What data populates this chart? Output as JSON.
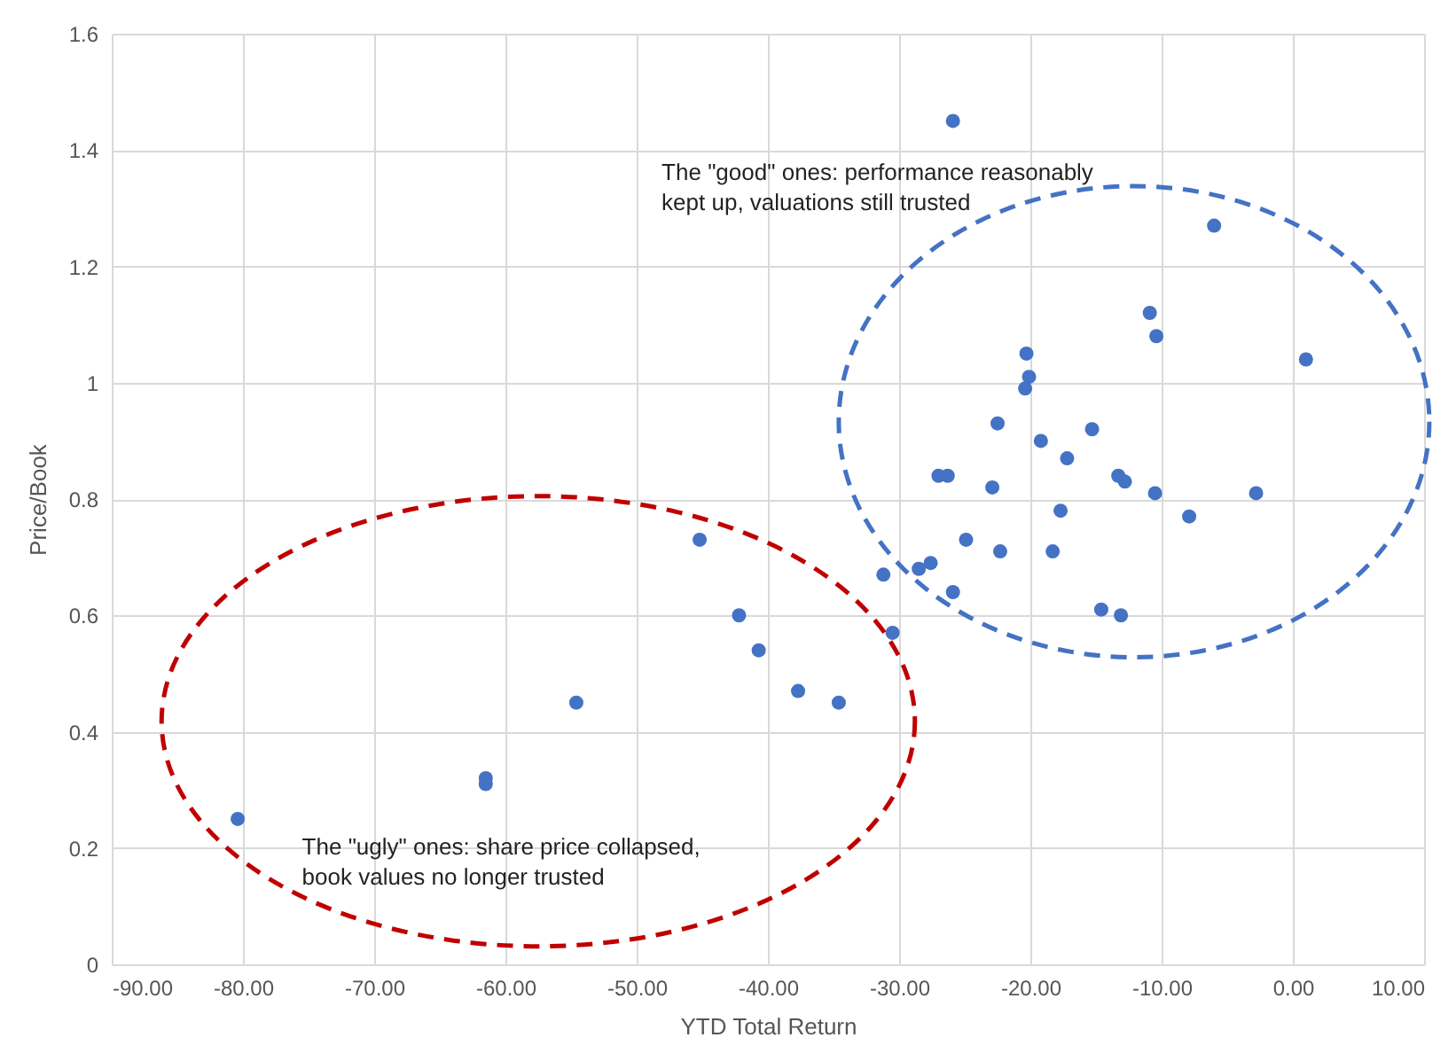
{
  "chart_data": {
    "type": "scatter",
    "xlabel": "YTD Total Return",
    "ylabel": "Price/Book",
    "x": [
      -25.9,
      -6.0,
      -10.9,
      -10.4,
      1.0,
      -20.3,
      -20.1,
      -20.4,
      -22.5,
      -15.3,
      -19.2,
      -17.2,
      -27.0,
      -26.3,
      -13.3,
      -12.8,
      -22.9,
      -10.5,
      -2.8,
      -17.7,
      -7.9,
      -45.2,
      -24.9,
      -22.3,
      -18.3,
      -27.6,
      -28.5,
      -31.2,
      -25.9,
      -42.2,
      -14.6,
      -13.1,
      -30.5,
      -40.7,
      -37.7,
      -34.6,
      -54.6,
      -61.5,
      -61.5,
      -80.4
    ],
    "series": [
      {
        "color": "#4472c4",
        "values": [
          1.45,
          1.27,
          1.12,
          1.08,
          1.04,
          1.05,
          1.01,
          0.99,
          0.93,
          0.92,
          0.9,
          0.87,
          0.84,
          0.84,
          0.84,
          0.83,
          0.82,
          0.81,
          0.81,
          0.78,
          0.77,
          0.73,
          0.73,
          0.71,
          0.71,
          0.69,
          0.68,
          0.67,
          0.64,
          0.6,
          0.61,
          0.6,
          0.57,
          0.54,
          0.47,
          0.45,
          0.45,
          0.32,
          0.31,
          0.25
        ]
      }
    ],
    "xlim": [
      -90,
      10
    ],
    "xticks": [
      {
        "value": -90,
        "label": "-90.00"
      },
      {
        "value": -80,
        "label": "-80.00"
      },
      {
        "value": -70,
        "label": "-70.00"
      },
      {
        "value": -60,
        "label": "-60.00"
      },
      {
        "value": -50,
        "label": "-50.00"
      },
      {
        "value": -40,
        "label": "-40.00"
      },
      {
        "value": -30,
        "label": "-30.00"
      },
      {
        "value": -20,
        "label": "-20.00"
      },
      {
        "value": -10,
        "label": "-10.00"
      },
      {
        "value": 0,
        "label": "0.00"
      },
      {
        "value": 10,
        "label": "10.00"
      }
    ],
    "ylim": [
      0,
      1.6
    ],
    "yticks": [
      0,
      0.2,
      0.4,
      0.6,
      0.8,
      1,
      1.2,
      1.4,
      1.6
    ],
    "grid": true,
    "marker": "circle",
    "annotations": [
      "The \"good\" ones: performance reasonably kept up, valuations still trusted",
      "The \"ugly\" ones: share price collapsed, book values no longer trusted"
    ]
  }
}
